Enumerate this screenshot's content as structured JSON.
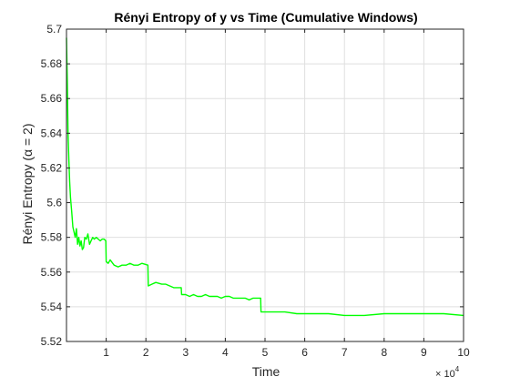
{
  "chart_data": {
    "type": "line",
    "title": "Rényi Entropy of y vs Time (Cumulative Windows)",
    "xlabel": "Time",
    "ylabel": "Rényi Entropy (α = 2)",
    "x_exponent_base": "× 10",
    "x_exponent_power": "4",
    "xlim": [
      0,
      100000
    ],
    "ylim": [
      5.52,
      5.7
    ],
    "x_ticks": [
      10000,
      20000,
      30000,
      40000,
      50000,
      60000,
      70000,
      80000,
      90000,
      100000
    ],
    "x_tick_labels": [
      "1",
      "2",
      "3",
      "4",
      "5",
      "6",
      "7",
      "8",
      "9",
      "10"
    ],
    "y_ticks": [
      5.52,
      5.54,
      5.56,
      5.58,
      5.6,
      5.62,
      5.64,
      5.66,
      5.68,
      5.7
    ],
    "y_tick_labels": [
      "5.52",
      "5.54",
      "5.56",
      "5.58",
      "5.6",
      "5.62",
      "5.64",
      "5.66",
      "5.68",
      "5.7"
    ],
    "grid": true,
    "series": [
      {
        "color": "#00ff00",
        "x": [
          0,
          200,
          400,
          600,
          800,
          1000,
          1300,
          1600,
          1900,
          2200,
          2500,
          2800,
          3100,
          3400,
          3700,
          4000,
          4300,
          4600,
          5000,
          5400,
          5800,
          6200,
          6600,
          7000,
          7500,
          8000,
          8500,
          9000,
          9500,
          9900,
          10000,
          10500,
          11000,
          12000,
          13000,
          14000,
          15000,
          16000,
          17000,
          18000,
          19000,
          20500,
          20600,
          21500,
          22500,
          24000,
          25000,
          26000,
          27000,
          28000,
          28900,
          29000,
          30000,
          31000,
          32000,
          33000,
          34000,
          35000,
          36000,
          37000,
          38000,
          39000,
          40000,
          41000,
          42000,
          43000,
          44000,
          45000,
          46000,
          47000,
          48000,
          48900,
          49000,
          50000,
          52000,
          55000,
          58000,
          60000,
          63000,
          66000,
          70000,
          75000,
          80000,
          85000,
          90000,
          95000,
          100000
        ],
        "y": [
          5.695,
          5.67,
          5.64,
          5.625,
          5.612,
          5.603,
          5.595,
          5.586,
          5.583,
          5.58,
          5.585,
          5.576,
          5.58,
          5.575,
          5.578,
          5.573,
          5.574,
          5.58,
          5.579,
          5.582,
          5.576,
          5.578,
          5.58,
          5.579,
          5.58,
          5.579,
          5.578,
          5.579,
          5.579,
          5.578,
          5.566,
          5.565,
          5.567,
          5.564,
          5.563,
          5.564,
          5.564,
          5.565,
          5.564,
          5.564,
          5.565,
          5.564,
          5.552,
          5.553,
          5.554,
          5.553,
          5.553,
          5.552,
          5.551,
          5.551,
          5.551,
          5.547,
          5.547,
          5.546,
          5.547,
          5.546,
          5.546,
          5.547,
          5.546,
          5.546,
          5.546,
          5.545,
          5.546,
          5.546,
          5.545,
          5.545,
          5.545,
          5.545,
          5.544,
          5.545,
          5.545,
          5.545,
          5.537,
          5.537,
          5.537,
          5.537,
          5.536,
          5.536,
          5.536,
          5.536,
          5.535,
          5.535,
          5.536,
          5.536,
          5.536,
          5.536,
          5.535
        ]
      }
    ]
  }
}
